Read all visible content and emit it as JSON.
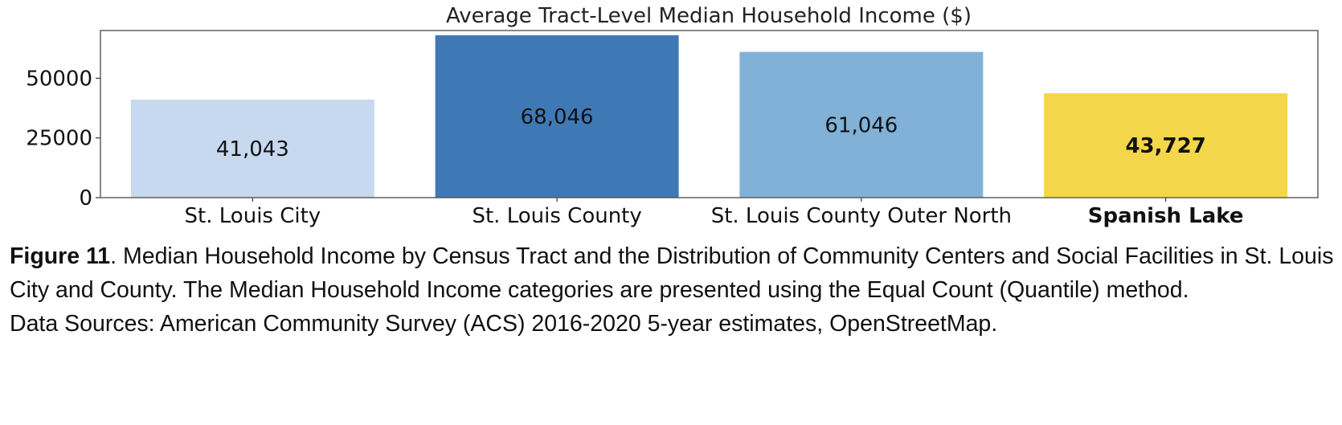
{
  "chart_data": {
    "type": "bar",
    "title": "Average Tract-Level Median Household Income ($)",
    "categories": [
      "St. Louis City",
      "St. Louis County",
      "St. Louis County Outer North",
      "Spanish Lake"
    ],
    "values": [
      41043,
      68046,
      61046,
      43727
    ],
    "value_labels": [
      "41,043",
      "68,046",
      "61,046",
      "43,727"
    ],
    "highlighted_category": "Spanish Lake",
    "colors": [
      "#c6d9ee",
      "#3f79b5",
      "#81b1d6",
      "#f4d64a"
    ],
    "yticks": [
      0,
      25000,
      50000
    ],
    "ylim": [
      0,
      70000
    ],
    "grid": false,
    "legend": "none"
  },
  "caption": {
    "figure_label": "Figure 11",
    "text": ". Median Household Income by Census Tract and the Distribution of Community Centers and Social Facilities in St. Louis City and County. The Median Household Income categories are presented using the Equal Count (Quantile) method.",
    "sources": "Data Sources: American Community Survey (ACS) 2016-2020 5-year estimates, OpenStreetMap."
  }
}
